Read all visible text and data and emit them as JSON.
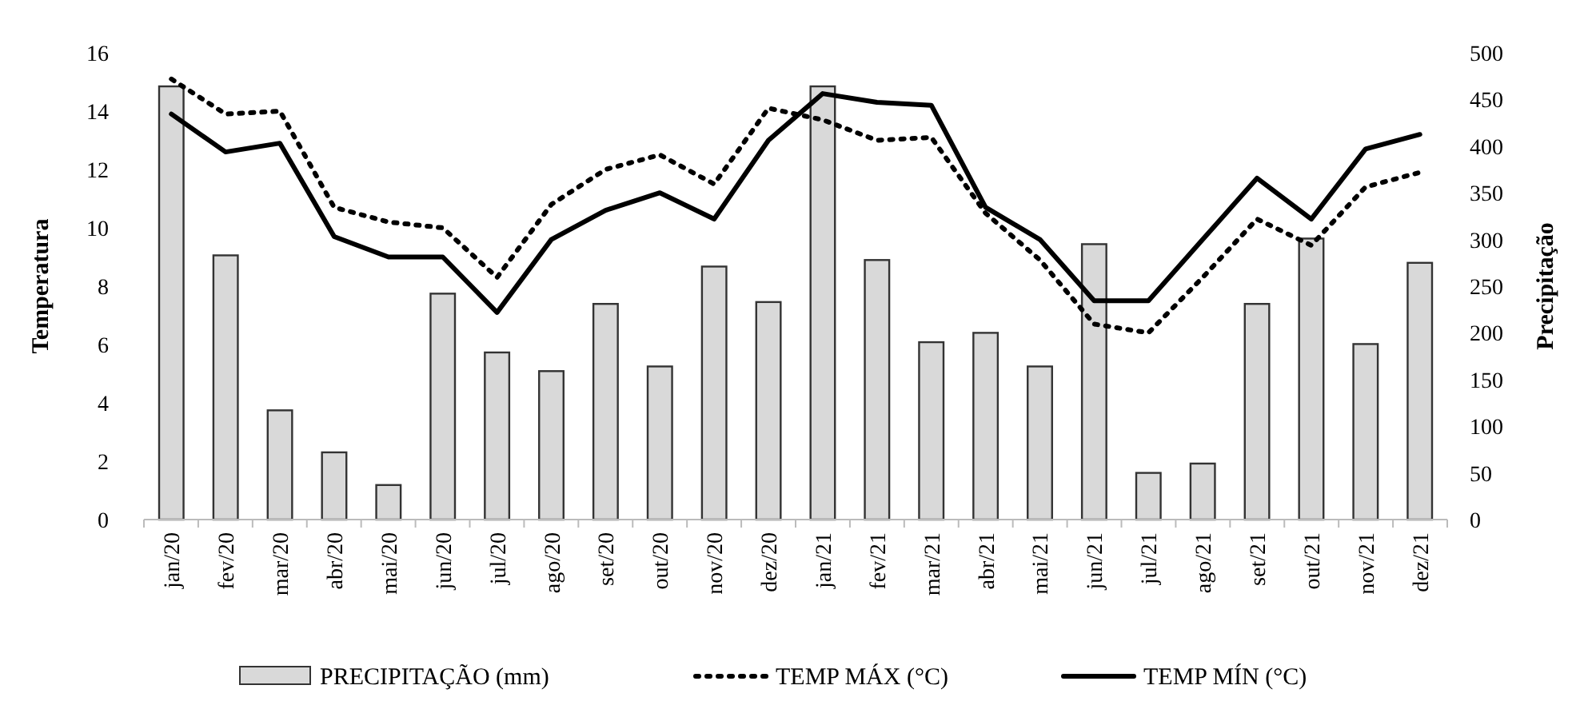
{
  "chart_data": {
    "type": "bar",
    "ylabel": "Temperatura",
    "y2label": "Precipitação",
    "categories": [
      "jan/20",
      "fev/20",
      "mar/20",
      "abr/20",
      "mai/20",
      "jun/20",
      "jul/20",
      "ago/20",
      "set/20",
      "out/20",
      "nov/20",
      "dez/20",
      "jan/21",
      "fev/21",
      "mar/21",
      "abr/21",
      "mai/21",
      "jun/21",
      "jul/21",
      "ago/21",
      "set/21",
      "out/21",
      "nov/21",
      "dez/21"
    ],
    "series": [
      {
        "name": "PRECIPITAÇÃO (mm)",
        "axis": "y2",
        "color": "#d9d9d9",
        "values": [
          464,
          283,
          117,
          72,
          37,
          242,
          179,
          159,
          231,
          164,
          271,
          233,
          464,
          278,
          190,
          200,
          164,
          295,
          50,
          60,
          231,
          301,
          188,
          275
        ]
      },
      {
        "name": "TEMP MÁX (°C)",
        "type": "line",
        "line_style": "dotted",
        "color": "#000000",
        "values": [
          15.1,
          13.9,
          14.0,
          10.7,
          10.2,
          10.0,
          8.3,
          10.8,
          12.0,
          12.5,
          11.5,
          14.1,
          13.7,
          13.0,
          13.1,
          10.5,
          8.9,
          6.7,
          6.4,
          8.3,
          10.3,
          9.4,
          11.4,
          11.9
        ]
      },
      {
        "name": "TEMP MÍN (°C)",
        "type": "line",
        "line_style": "solid",
        "color": "#000000",
        "values": [
          13.9,
          12.6,
          12.9,
          9.7,
          9.0,
          9.0,
          7.1,
          9.6,
          10.6,
          11.2,
          10.3,
          13.0,
          14.6,
          14.3,
          14.2,
          10.7,
          9.6,
          7.5,
          7.5,
          9.6,
          11.7,
          10.3,
          12.7,
          13.2
        ]
      }
    ],
    "ylim": [
      0,
      16
    ],
    "yticks": [
      0,
      2,
      4,
      6,
      8,
      10,
      12,
      14,
      16
    ],
    "y2lim": [
      0,
      500
    ],
    "y2ticks": [
      0,
      50,
      100,
      150,
      200,
      250,
      300,
      350,
      400,
      450,
      500
    ],
    "grid": false,
    "legend": "bottom"
  }
}
